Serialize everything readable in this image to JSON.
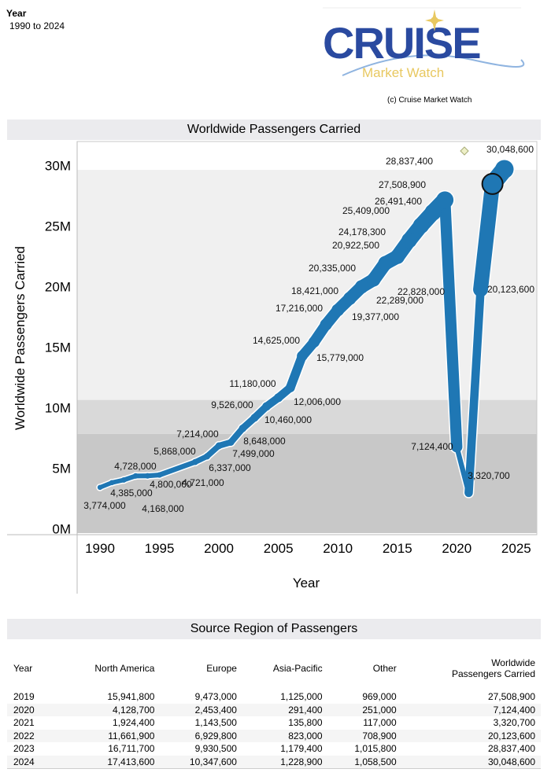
{
  "filter": {
    "title": "Year",
    "value": "1990 to 2024"
  },
  "logo": {
    "main": "CRUISE",
    "sub": "Market Watch",
    "colors": {
      "main": "#2a4aa0",
      "sub": "#e8c860",
      "wave": "#8fb4e0"
    }
  },
  "copyright": "(c) Cruise Market Watch",
  "chart_section_title": "Worldwide Passengers Carried",
  "chart_data": {
    "type": "line",
    "title": "Worldwide Passengers Carried",
    "xlabel": "Year",
    "ylabel": "Worldwide Passengers Carried",
    "xlim": [
      1988,
      2026
    ],
    "ylim": [
      0,
      30000000
    ],
    "x_ticks": [
      "1990",
      "1995",
      "2000",
      "2005",
      "2010",
      "2015",
      "2020",
      "2025"
    ],
    "y_ticks": [
      "0M",
      "5M",
      "10M",
      "15M",
      "20M",
      "25M",
      "30M"
    ],
    "line_width_encodes_value": true,
    "series_color": "#1f77b4",
    "x": [
      1990,
      1991,
      1992,
      1993,
      1994,
      1995,
      1998,
      1999,
      2000,
      2001,
      2002,
      2003,
      2004,
      2005,
      2006,
      2007,
      2008,
      2009,
      2010,
      2011,
      2012,
      2013,
      2014,
      2015,
      2016,
      2017,
      2018,
      2019,
      2020,
      2021,
      2022,
      2023,
      2024
    ],
    "values": [
      3774000,
      4168000,
      4385000,
      4721000,
      4728000,
      4800000,
      5868000,
      6337000,
      7214000,
      7499000,
      8648000,
      9526000,
      10460000,
      11180000,
      12006000,
      14625000,
      15779000,
      17216000,
      18421000,
      19377000,
      20335000,
      20922500,
      22289000,
      22828000,
      24178300,
      25409000,
      26491400,
      27508900,
      7124400,
      3320700,
      20123600,
      28837400,
      30048600
    ],
    "labels": [
      "3,774,000",
      "4,168,000",
      "4,385,000",
      "4,721,000",
      "4,728,000",
      "4,800,000",
      "5,868,000",
      "6,337,000",
      "7,214,000",
      "7,499,000",
      "8,648,000",
      "9,526,000",
      "10,460,000",
      "11,180,000",
      "12,006,000",
      "14,625,000",
      "15,779,000",
      "17,216,000",
      "18,421,000",
      "19,377,000",
      "20,335,000",
      "20,922,500",
      "22,289,000",
      "22,828,000",
      "24,178,300",
      "25,409,000",
      "26,491,400",
      "27,508,900",
      "7,124,400",
      "3,320,700",
      "20,123,600",
      "28,837,400",
      "30,048,600"
    ],
    "highlighted_year": 2023,
    "bands": [
      {
        "from": 0,
        "to": 8200000,
        "color": "#c8c8c8"
      },
      {
        "from": 8200000,
        "to": 11000000,
        "color": "#d9d9d9"
      },
      {
        "from": 11000000,
        "to": 30000000,
        "color": "#f0f0f0"
      }
    ]
  },
  "table": {
    "title": "Source Region of Passengers",
    "headers": [
      "Year",
      "North America",
      "Europe",
      "Asia-Pacific",
      "Other",
      "Worldwide\nPassengers Carried"
    ],
    "rows": [
      [
        "2019",
        "15,941,800",
        "9,473,000",
        "1,125,000",
        "969,000",
        "27,508,900"
      ],
      [
        "2020",
        "4,128,700",
        "2,453,400",
        "291,400",
        "251,000",
        "7,124,400"
      ],
      [
        "2021",
        "1,924,400",
        "1,143,500",
        "135,800",
        "117,000",
        "3,320,700"
      ],
      [
        "2022",
        "11,661,900",
        "6,929,800",
        "823,000",
        "708,900",
        "20,123,600"
      ],
      [
        "2023",
        "16,711,700",
        "9,930,500",
        "1,179,400",
        "1,015,800",
        "28,837,400"
      ],
      [
        "2024",
        "17,413,600",
        "10,347,600",
        "1,228,900",
        "1,058,500",
        "30,048,600"
      ]
    ]
  }
}
